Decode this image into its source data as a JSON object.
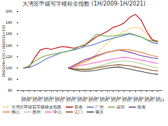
{
  "chart_data": {
    "type": "line",
    "title": "大湾区甲级写字楼租金指数 (1H/2009-1H/2021)",
    "y_label": "1H/2009=100 / 1H/2013=100",
    "categories": [
      "1H",
      "2H",
      "1H",
      "2H",
      "1H",
      "2H",
      "1H",
      "2H",
      "1H",
      "2H",
      "1H",
      "2H",
      "1H",
      "2H",
      "1H",
      "2H",
      "1H",
      "2H",
      "1H",
      "2H",
      "1H",
      "2H",
      "1H",
      "2H",
      "1H"
    ],
    "years": [
      "2009",
      "2010",
      "2011",
      "2012",
      "2013",
      "2014",
      "2015",
      "2016",
      "2017",
      "2018",
      "2019",
      "2020",
      "2021"
    ],
    "ylim": [
      60,
      200
    ],
    "yticks": [
      60,
      80,
      100,
      120,
      140,
      160,
      180,
      200
    ],
    "grid": false,
    "series": [
      {
        "name": "大湾区甲级写字楼租金指数",
        "color": "#f2c04c",
        "line_style": "dashed",
        "values": [
          null,
          null,
          null,
          null,
          null,
          null,
          null,
          null,
          100,
          102,
          106,
          110,
          115,
          125,
          135,
          145,
          152,
          160,
          165,
          170,
          172,
          170,
          160,
          150,
          148
        ]
      },
      {
        "name": "香港",
        "color": "#c00000",
        "values": [
          100,
          102,
          118,
          132,
          135,
          133,
          136,
          138,
          137,
          135,
          138,
          140,
          148,
          155,
          160,
          165,
          172,
          175,
          180,
          190,
          195,
          185,
          165,
          150,
          147
        ]
      },
      {
        "name": "广州",
        "color": "#4472c4",
        "values": [
          100,
          101,
          105,
          110,
          116,
          120,
          124,
          128,
          130,
          132,
          135,
          138,
          140,
          143,
          147,
          150,
          153,
          155,
          158,
          160,
          158,
          155,
          150,
          145,
          143
        ]
      },
      {
        "name": "深圳",
        "color": "#70ad47",
        "values": [
          100,
          104,
          112,
          118,
          122,
          124,
          126,
          128,
          130,
          133,
          138,
          142,
          150,
          160,
          158,
          156,
          157,
          158,
          160,
          162,
          158,
          155,
          150,
          148,
          146
        ]
      },
      {
        "name": "珠海",
        "color": "#7030a0",
        "values": [
          null,
          null,
          null,
          null,
          null,
          null,
          null,
          null,
          100,
          105,
          110,
          115,
          118,
          122,
          125,
          128,
          130,
          132,
          130,
          128,
          125,
          122,
          120,
          118,
          117
        ]
      },
      {
        "name": "佛山",
        "color": "#ed7d31",
        "values": [
          null,
          null,
          null,
          null,
          null,
          null,
          null,
          null,
          100,
          103,
          108,
          112,
          116,
          120,
          124,
          128,
          130,
          132,
          133,
          132,
          130,
          128,
          125,
          122,
          120
        ]
      },
      {
        "name": "惠州",
        "color": "#a9d18e",
        "values": [
          null,
          null,
          null,
          null,
          null,
          null,
          null,
          null,
          100,
          98,
          97,
          99,
          100,
          102,
          105,
          108,
          110,
          112,
          113,
          112,
          110,
          108,
          105,
          102,
          100
        ]
      },
      {
        "name": "中山",
        "color": "#ff66cc",
        "values": [
          null,
          null,
          null,
          null,
          null,
          null,
          null,
          null,
          100,
          102,
          104,
          106,
          108,
          110,
          112,
          114,
          116,
          118,
          119,
          118,
          116,
          114,
          112,
          110,
          108
        ]
      },
      {
        "name": "江门",
        "color": "#8b4513",
        "values": [
          null,
          null,
          null,
          null,
          null,
          null,
          null,
          null,
          100,
          99,
          98,
          97,
          98,
          100,
          102,
          104,
          105,
          106,
          105,
          104,
          102,
          100,
          98,
          96,
          95
        ]
      },
      {
        "name": "肇庆",
        "color": "#404040",
        "values": [
          null,
          null,
          null,
          null,
          null,
          null,
          null,
          null,
          100,
          97,
          95,
          94,
          95,
          96,
          98,
          100,
          101,
          102,
          100,
          98,
          96,
          94,
          92,
          90,
          89
        ]
      }
    ]
  }
}
